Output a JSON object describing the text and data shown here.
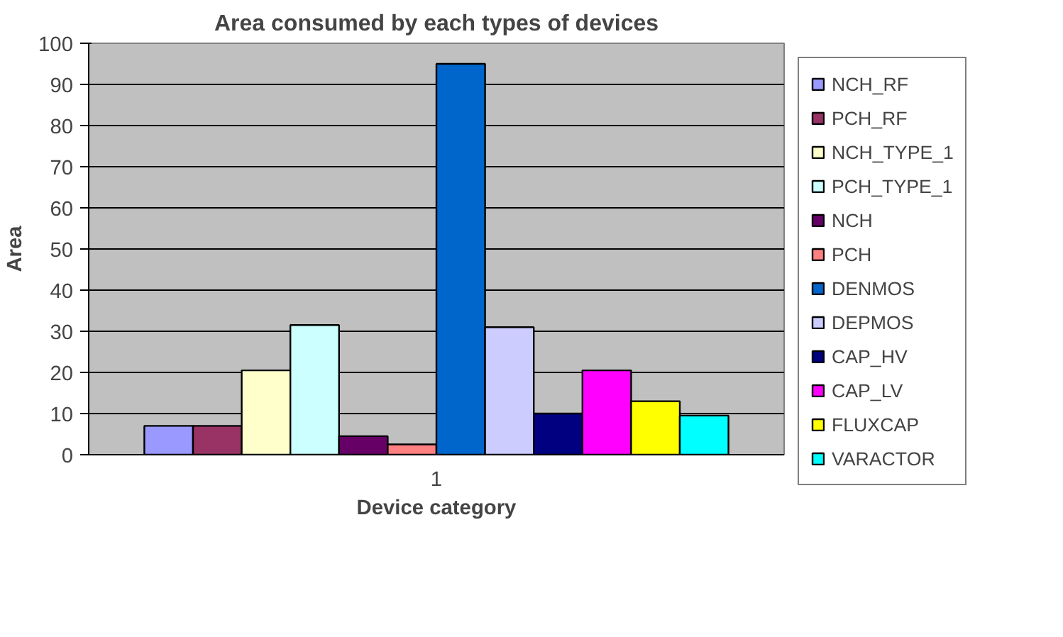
{
  "chart_data": {
    "type": "bar",
    "title": "Area consumed by each types of devices",
    "xlabel": "Device category",
    "ylabel": "Area",
    "categories": [
      "1"
    ],
    "series": [
      {
        "name": "NCH_RF",
        "color": "#9999ff",
        "values": [
          7
        ]
      },
      {
        "name": "PCH_RF",
        "color": "#993366",
        "values": [
          7
        ]
      },
      {
        "name": "NCH_TYPE_1",
        "color": "#ffffcc",
        "values": [
          20.5
        ]
      },
      {
        "name": "PCH_TYPE_1",
        "color": "#ccffff",
        "values": [
          31.5
        ]
      },
      {
        "name": "NCH",
        "color": "#660066",
        "values": [
          4.5
        ]
      },
      {
        "name": "PCH",
        "color": "#ff8080",
        "values": [
          2.5
        ]
      },
      {
        "name": "DENMOS",
        "color": "#0066cc",
        "values": [
          95
        ]
      },
      {
        "name": "DEPMOS",
        "color": "#ccccff",
        "values": [
          31
        ]
      },
      {
        "name": "CAP_HV",
        "color": "#000080",
        "values": [
          10
        ]
      },
      {
        "name": "CAP_LV",
        "color": "#ff00ff",
        "values": [
          20.5
        ]
      },
      {
        "name": "FLUXCAP",
        "color": "#ffff00",
        "values": [
          13
        ]
      },
      {
        "name": "VARACTOR",
        "color": "#00ffff",
        "values": [
          9.5
        ]
      }
    ],
    "ylim": [
      0,
      100
    ],
    "yticks": [
      0,
      10,
      20,
      30,
      40,
      50,
      60,
      70,
      80,
      90,
      100
    ],
    "grid": "y",
    "legend": "right"
  }
}
